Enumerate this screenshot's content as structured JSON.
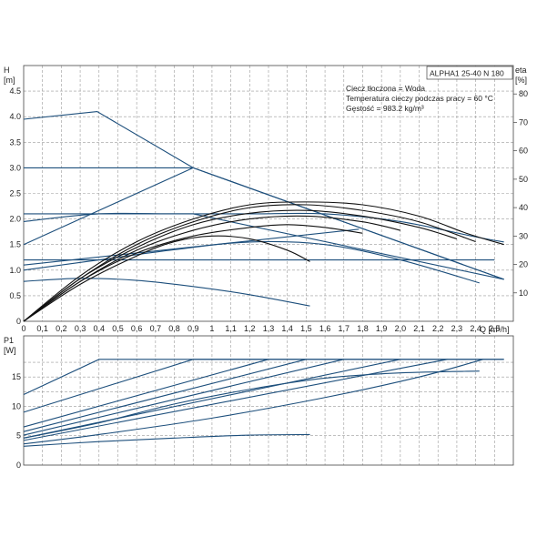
{
  "chart_data": [
    {
      "type": "line",
      "panel": "head",
      "title_box": "ALPHA1 25-40 N 180",
      "info": [
        "Ciecz tłoczona = Woda",
        "Temperatura cieczy podczas pracy = 60 °C",
        "Gęstość = 983.2 kg/m³"
      ],
      "ylabel_top": "H",
      "ylabel_unit": "[m]",
      "y2label_top": "eta",
      "y2label_unit": "[%]",
      "xlabel": "Q [m³/h]",
      "xlim": [
        0,
        2.6
      ],
      "ylim": [
        0,
        5
      ],
      "y2lim": [
        0,
        90
      ],
      "xticks": [
        "0",
        "0,1",
        "0,2",
        "0,3",
        "0,4",
        "0,5",
        "0,6",
        "0,7",
        "0,8",
        "0,9",
        "1",
        "1,1",
        "1,2",
        "1,3",
        "1,4",
        "1,5",
        "1,6",
        "1,7",
        "1,8",
        "1,9",
        "2,0",
        "2,1",
        "2,2",
        "2,3",
        "2,4",
        "2,5"
      ],
      "yticks": [
        "0",
        "0.5",
        "1.0",
        "1.5",
        "2.0",
        "2.5",
        "3.0",
        "3.5",
        "4.0",
        "4.5"
      ],
      "y2ticks": [
        "10",
        "20",
        "30",
        "40",
        "50",
        "60",
        "70",
        "80"
      ],
      "grid": true,
      "head_series": [
        {
          "x": [
            0,
            0.39,
            0.9,
            2.55
          ],
          "y": [
            3.95,
            4.1,
            3.0,
            0.82
          ]
        },
        {
          "x": [
            0,
            0.9,
            2.55
          ],
          "y": [
            3.0,
            3.0,
            0.82
          ]
        },
        {
          "x": [
            0,
            0.9
          ],
          "y": [
            1.5,
            3.0
          ]
        },
        {
          "x": [
            0,
            0.9,
            2.55
          ],
          "y": [
            2.1,
            2.1,
            0.82
          ]
        },
        {
          "x": [
            0,
            1.78
          ],
          "y": [
            1.1,
            1.8
          ]
        },
        {
          "x": [
            0,
            2.5
          ],
          "y": [
            1.2,
            1.2
          ]
        },
        {
          "x": [
            0,
            0.3,
            0.6,
            0.9,
            1.2,
            1.52
          ],
          "y": [
            0.78,
            0.84,
            0.8,
            0.68,
            0.52,
            0.3
          ]
        },
        {
          "x": [
            0,
            0.4,
            0.8,
            1.2,
            1.6,
            2.0,
            2.42
          ],
          "y": [
            1.0,
            1.2,
            1.4,
            1.55,
            1.5,
            1.2,
            0.75
          ]
        },
        {
          "x": [
            0,
            0.4,
            0.8,
            1.2,
            1.6,
            2.0,
            2.4,
            2.55
          ],
          "y": [
            1.95,
            2.1,
            2.1,
            2.1,
            2.1,
            1.95,
            1.65,
            1.55
          ]
        }
      ],
      "eta_series": [
        {
          "x": [
            0,
            0.3,
            0.6,
            0.9,
            1.2,
            1.5,
            1.8,
            2.1,
            2.35,
            2.55
          ],
          "y": [
            0,
            16,
            28,
            36,
            41,
            42,
            41,
            37,
            31,
            27
          ]
        },
        {
          "x": [
            0,
            0.3,
            0.6,
            0.9,
            1.2,
            1.5,
            1.8,
            2.1,
            2.4
          ],
          "y": [
            0,
            15,
            27,
            35,
            40,
            41,
            39,
            35,
            28
          ]
        },
        {
          "x": [
            0,
            0.3,
            0.6,
            0.9,
            1.2,
            1.5,
            1.8,
            2.1,
            2.3
          ],
          "y": [
            0,
            15,
            26,
            34,
            38,
            39,
            37,
            33,
            29
          ]
        },
        {
          "x": [
            0,
            0.3,
            0.6,
            0.9,
            1.2,
            1.5,
            1.8,
            2.0
          ],
          "y": [
            0,
            14,
            25,
            32,
            36,
            37,
            35,
            32
          ]
        },
        {
          "x": [
            0,
            0.3,
            0.6,
            0.9,
            1.2,
            1.4,
            1.6,
            1.8
          ],
          "y": [
            0,
            14,
            24,
            30,
            33,
            34,
            33,
            31
          ]
        },
        {
          "x": [
            0,
            0.3,
            0.6,
            0.8,
            1.0,
            1.2,
            1.4,
            1.52
          ],
          "y": [
            0,
            13,
            23,
            28,
            30,
            29,
            25,
            21
          ]
        }
      ]
    },
    {
      "type": "line",
      "panel": "power",
      "ylabel_top": "P1",
      "ylabel_unit": "[W]",
      "xlim": [
        0,
        2.6
      ],
      "ylim": [
        0,
        22
      ],
      "yticks": [
        "0",
        "5",
        "10",
        "15"
      ],
      "grid": true,
      "series": [
        {
          "x": [
            0,
            0.4,
            2.55
          ],
          "y": [
            12,
            18,
            18
          ]
        },
        {
          "x": [
            0,
            0.9,
            2.55
          ],
          "y": [
            9,
            18,
            18
          ]
        },
        {
          "x": [
            0,
            1.3
          ],
          "y": [
            6.5,
            18
          ]
        },
        {
          "x": [
            0,
            1.5
          ],
          "y": [
            5.7,
            18
          ]
        },
        {
          "x": [
            0,
            1.7
          ],
          "y": [
            5.1,
            18
          ]
        },
        {
          "x": [
            0,
            2.0
          ],
          "y": [
            4.6,
            18
          ]
        },
        {
          "x": [
            0,
            2.25
          ],
          "y": [
            4.2,
            18
          ]
        },
        {
          "x": [
            0,
            0.4,
            1.0,
            1.6,
            2.1,
            2.44
          ],
          "y": [
            3.6,
            5.2,
            8.0,
            11.5,
            15,
            18
          ]
        },
        {
          "x": [
            0,
            0.4,
            0.8,
            1.2,
            1.6,
            2.0,
            2.42
          ],
          "y": [
            4.6,
            7.2,
            10.4,
            12.9,
            14.8,
            15.7,
            16.0
          ]
        },
        {
          "x": [
            0,
            0.4,
            0.8,
            1.2,
            1.52
          ],
          "y": [
            3.2,
            4.0,
            4.6,
            5.1,
            5.2
          ]
        }
      ]
    }
  ]
}
